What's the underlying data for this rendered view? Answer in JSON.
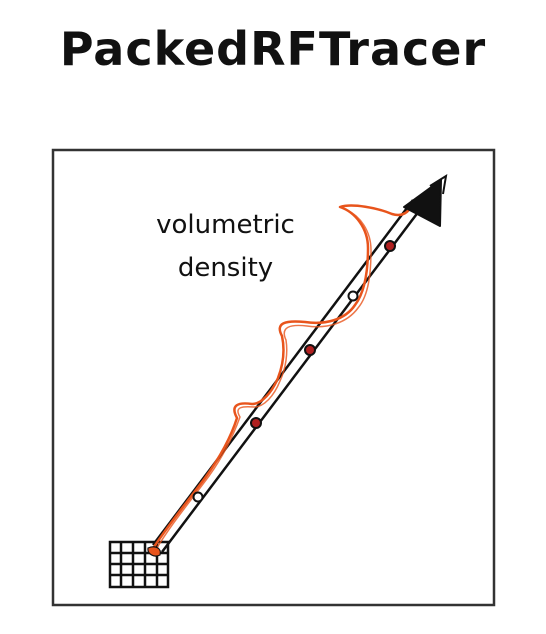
{
  "title": "PackedRFTracer",
  "annotation": {
    "line1": "volumetric",
    "line2": "density"
  },
  "colors": {
    "ink": "#111111",
    "density_curve": "#e8541c",
    "sample_fill_dark": "#b02020",
    "sample_fill_light": "#ffffff"
  },
  "icons": [
    "voxel-grid-icon",
    "arrowhead-icon"
  ]
}
